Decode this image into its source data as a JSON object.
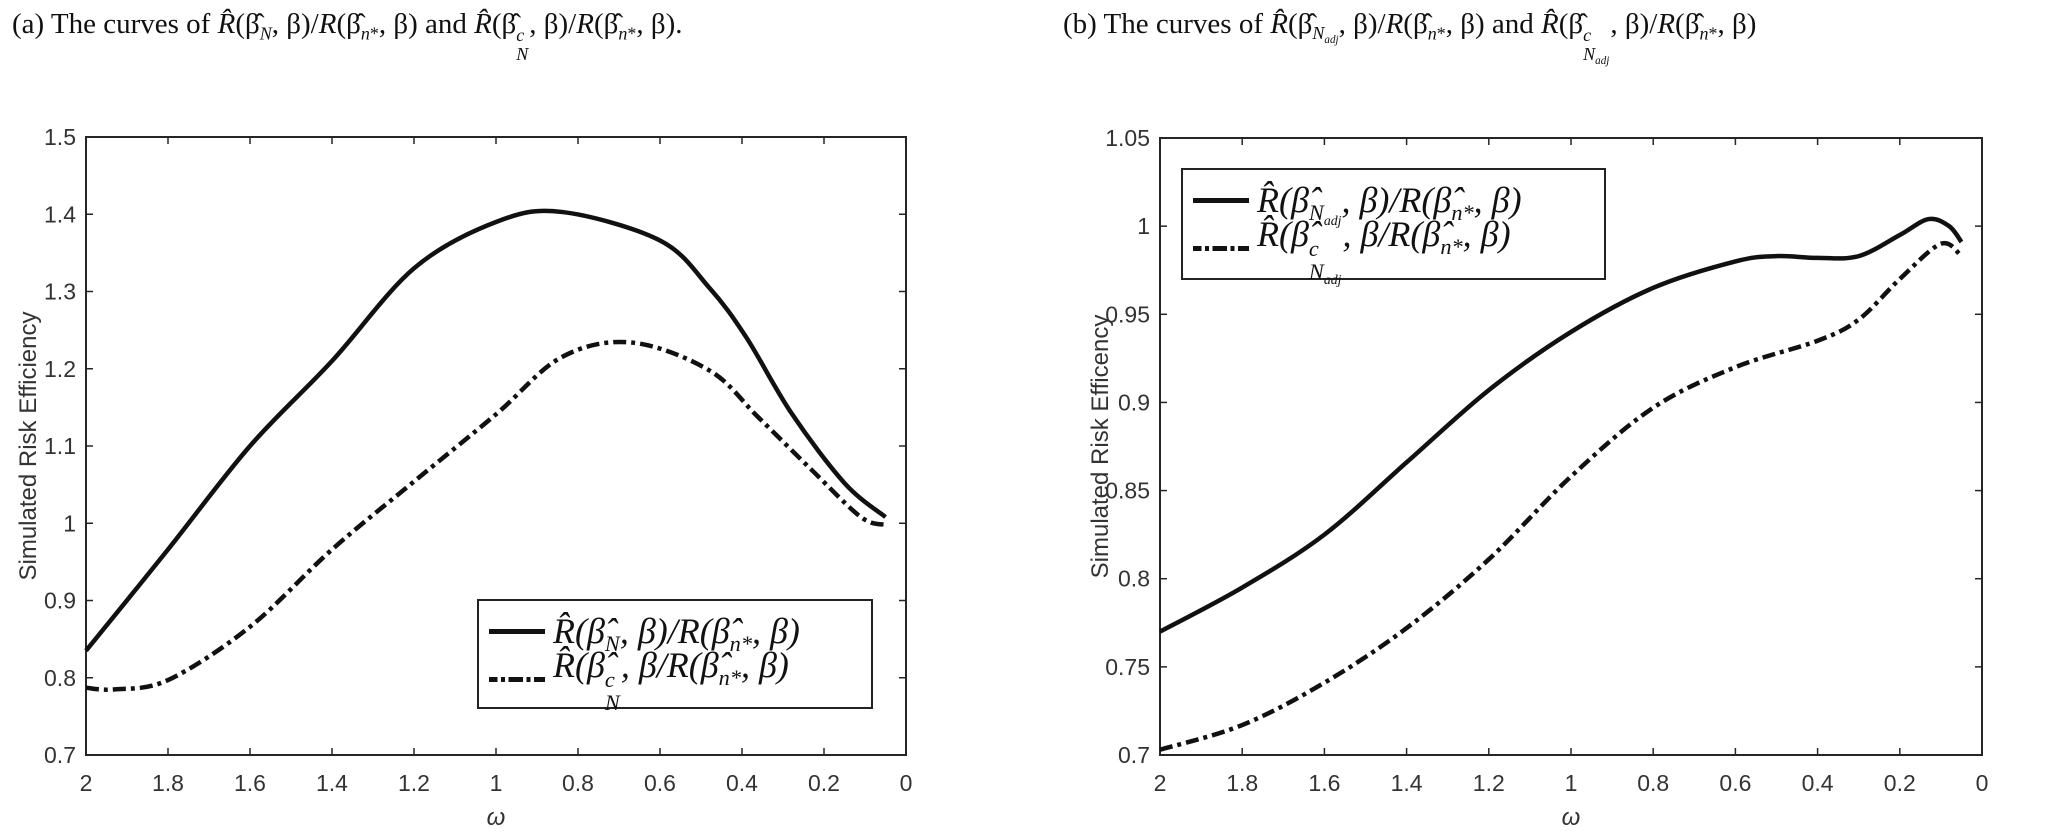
{
  "titles": {
    "a": "(a) The curves of <i>R̂</i>(β̂<sub><i>N</i></sub>, β)/<i>R</i>(β̂<sub><i>n</i>*</sub>, β) and <i>R̂</i>(β̂<span class=\"ss\"><i>c</i><i>N</i></span>, β)/<i>R</i>(β̂<sub><i>n</i>*</sub>, β).",
    "b": "(b) The curves of <i>R̂</i>(β̂<sub><i>N<sub>adj</sub></i></sub>, β)/<i>R</i>(β̂<sub><i>n</i>*</sub>, β) and <i>R̂</i>(β̂<span class=\"ss\"><i>c</i><i>N<sub>adj</sub></i></span>, β)/<i>R</i>(β̂<sub><i>n</i>*</sub>, β)"
  },
  "chart_data": [
    {
      "type": "line",
      "panel": "a",
      "xlabel": "ω",
      "ylabel": "Simulated Risk Efficiency",
      "xlim": [
        2,
        0
      ],
      "ylim": [
        0.7,
        1.5
      ],
      "xticks": [
        "2",
        "1.8",
        "1.6",
        "1.4",
        "1.2",
        "1",
        "0.8",
        "0.6",
        "0.4",
        "0.2",
        "0"
      ],
      "yticks": [
        "0.7",
        "0.8",
        "0.9",
        "1",
        "1.1",
        "1.2",
        "1.3",
        "1.4",
        "1.5"
      ],
      "legend_position": "bottom-right",
      "series": [
        {
          "name": "<i>R̂</i>(β̂<sub><i>N</i></sub>, β)/<i>R</i>(β̂<sub><i>n</i>*</sub>, β)",
          "style": "solid",
          "x": [
            2,
            1.8,
            1.6,
            1.4,
            1.2,
            1.0,
            0.84,
            0.6,
            0.48,
            0.39,
            0.28,
            0.15,
            0.05
          ],
          "y": [
            0.835,
            0.966,
            1.1,
            1.21,
            1.33,
            1.39,
            1.403,
            1.366,
            1.305,
            1.241,
            1.143,
            1.052,
            1.008
          ]
        },
        {
          "name": "<i>R̂</i>(β̂<span class=\"ss\"><i>c</i><i>N</i></span>, β/<i>R</i>(β̂<sub><i>n</i>*</sub>, β)",
          "style": "dashdot",
          "x": [
            2,
            1.93,
            1.8,
            1.6,
            1.4,
            1.2,
            1.0,
            0.84,
            0.67,
            0.48,
            0.36,
            0.23,
            0.11,
            0.05
          ],
          "y": [
            0.787,
            0.785,
            0.797,
            0.866,
            0.966,
            1.054,
            1.141,
            1.215,
            1.234,
            1.198,
            1.137,
            1.069,
            1.008,
            0.998
          ]
        }
      ]
    },
    {
      "type": "line",
      "panel": "b",
      "xlabel": "ω",
      "ylabel": "Simulated Risk Efficency",
      "xlim": [
        2,
        0
      ],
      "ylim": [
        0.7,
        1.05
      ],
      "xticks": [
        "2",
        "1.8",
        "1.6",
        "1.4",
        "1.2",
        "1",
        "0.8",
        "0.6",
        "0.4",
        "0.2",
        "0"
      ],
      "yticks": [
        "0.7",
        "0.75",
        "0.8",
        "0.85",
        "0.9",
        "0.95",
        "1",
        "1.05"
      ],
      "legend_position": "top-left",
      "series": [
        {
          "name": "<i>R̂</i>(β̂<sub><i>N<sub>adj</sub></i></sub>, β)/<i>R</i>(β̂<sub><i>n</i>*</sub>, β)",
          "style": "solid",
          "x": [
            2,
            1.8,
            1.6,
            1.4,
            1.2,
            1.0,
            0.8,
            0.6,
            0.5,
            0.4,
            0.3,
            0.2,
            0.13,
            0.08,
            0.05
          ],
          "y": [
            0.77,
            0.795,
            0.825,
            0.866,
            0.907,
            0.94,
            0.965,
            0.98,
            0.983,
            0.982,
            0.983,
            0.995,
            1.004,
            1.0,
            0.991
          ]
        },
        {
          "name": "<i>R̂</i>(β̂<span class=\"ss\"><i>c</i><i>N<sub>adj</sub></i></span>, β/<i>R</i>(β̂<sub><i>n</i>*</sub>, β)",
          "style": "dashdot",
          "x": [
            2,
            1.8,
            1.6,
            1.4,
            1.2,
            1.0,
            0.8,
            0.6,
            0.4,
            0.3,
            0.2,
            0.1,
            0.05
          ],
          "y": [
            0.703,
            0.717,
            0.741,
            0.772,
            0.811,
            0.858,
            0.897,
            0.92,
            0.935,
            0.947,
            0.97,
            0.99,
            0.983
          ]
        }
      ]
    }
  ]
}
